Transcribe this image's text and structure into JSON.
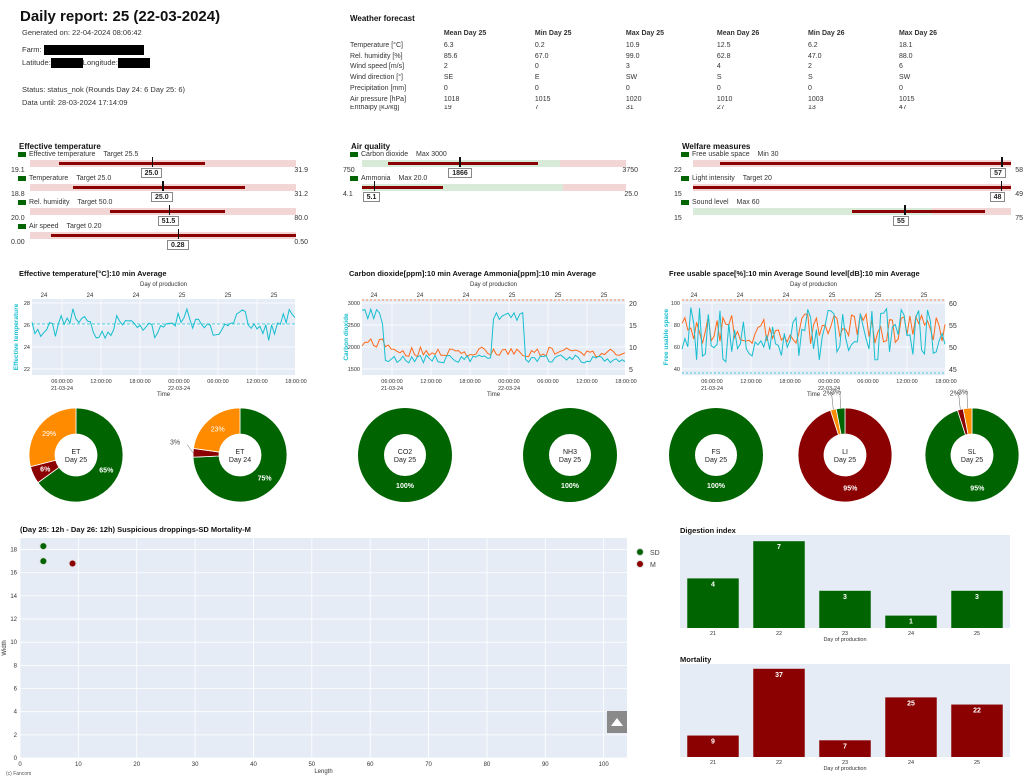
{
  "header": {
    "title": "Daily report: 25 (22-03-2024)",
    "generated": "Generated on: 22-04-2024 08:06:42",
    "farm_label": "Farm:",
    "latitude_label": "Latitude:",
    "longitude_label": "Longitude:",
    "status": "Status: status_nok (Rounds Day 24: 6 Day 25: 6)",
    "data_until": "Data until: 28-03-2024 17:14:09"
  },
  "weather": {
    "title": "Weather forecast",
    "columns": [
      "",
      "Mean Day 25",
      "Min Day 25",
      "Max Day 25",
      "Mean Day 26",
      "Min Day 26",
      "Max Day 26"
    ],
    "rows": [
      [
        "Temperature [°C]",
        "6.3",
        "0.2",
        "10.9",
        "12.5",
        "6.2",
        "18.1"
      ],
      [
        "Rel. humidity [%]",
        "85.6",
        "67.0",
        "99.0",
        "62.8",
        "47.0",
        "88.0"
      ],
      [
        "Wind speed [m/s]",
        "2",
        "0",
        "3",
        "4",
        "2",
        "6"
      ],
      [
        "Wind direction [°]",
        "SE",
        "E",
        "SW",
        "S",
        "S",
        "SW"
      ],
      [
        "Precipitation [mm]",
        "0",
        "0",
        "0",
        "0",
        "0",
        "0"
      ],
      [
        "Air pressure [hPa]",
        "1018",
        "1015",
        "1020",
        "1010",
        "1003",
        "1015"
      ],
      [
        "Enthalpy [kJ/kg]",
        "19",
        "7",
        "31",
        "27",
        "13",
        "47"
      ]
    ]
  },
  "gauge_groups": [
    {
      "title": "Effective temperature",
      "gauges": [
        {
          "name": "Effective temperature",
          "target": "Target 25.5",
          "min": "19.1",
          "max": "31.9",
          "lo": 19.1,
          "hi": 31.9,
          "bar_from": 20.5,
          "bar_to": 27.5,
          "green_from": null,
          "green_to": null,
          "value": 25.0,
          "label": "25.0"
        },
        {
          "name": "Temperature",
          "target": "Target 25.0",
          "min": "18.8",
          "max": "31.2",
          "lo": 18.8,
          "hi": 31.2,
          "bar_from": 20.8,
          "bar_to": 28.8,
          "green_from": null,
          "green_to": null,
          "value": 25.0,
          "label": "25.0"
        },
        {
          "name": "Rel. humidity",
          "target": "Target 50.0",
          "min": "20.0",
          "max": "80.0",
          "lo": 20.0,
          "hi": 80.0,
          "bar_from": 38,
          "bar_to": 64,
          "green_from": null,
          "green_to": null,
          "value": 51.5,
          "label": "51.5"
        },
        {
          "name": "Air speed",
          "target": "Target 0.20",
          "min": "0.00",
          "max": "0.50",
          "lo": 0,
          "hi": 0.5,
          "bar_from": 0.04,
          "bar_to": 0.5,
          "green_from": null,
          "green_to": null,
          "value": 0.28,
          "label": "0.28"
        }
      ]
    },
    {
      "title": "Air quality",
      "gauges": [
        {
          "name": "Carbon dioxide",
          "target": "Max 3000",
          "min": "750",
          "max": "3750",
          "lo": 750,
          "hi": 3750,
          "bar_from": 1050,
          "bar_to": 2750,
          "green_from": 750,
          "green_to": 3000,
          "value": 1866,
          "label": "1866"
        },
        {
          "name": "Ammonia",
          "target": "Max 20.0",
          "min": "4.1",
          "max": "25.0",
          "lo": 4.1,
          "hi": 25.0,
          "bar_from": 4.1,
          "bar_to": 10.5,
          "green_from": 4.1,
          "green_to": 20.0,
          "value": 5.1,
          "label": "5.1"
        }
      ]
    },
    {
      "title": "Welfare measures",
      "gauges": [
        {
          "name": "Free usable space",
          "target": "Min 30",
          "min": "22",
          "max": "58",
          "lo": 22,
          "hi": 58,
          "bar_from": 25,
          "bar_to": 58,
          "green_from": null,
          "green_to": null,
          "value": 57,
          "label": "57"
        },
        {
          "name": "Light intensity",
          "target": "Target 20",
          "min": "15",
          "max": "49",
          "lo": 15,
          "hi": 49,
          "bar_from": 15,
          "bar_to": 49,
          "green_from": null,
          "green_to": null,
          "value": 48,
          "label": "48"
        },
        {
          "name": "Sound level",
          "target": "Max 60",
          "min": "15",
          "max": "75",
          "lo": 15,
          "hi": 75,
          "bar_from": 45,
          "bar_to": 70,
          "green_from": 15,
          "green_to": 60,
          "value": 55,
          "label": "55"
        }
      ]
    }
  ],
  "line_charts": [
    {
      "title": "Effective temperature[°C]:10 min Average",
      "top_axis": "Day of production",
      "top_ticks": [
        "24",
        "24",
        "24",
        "25",
        "25",
        "25"
      ],
      "xlabel": "Time",
      "x_ticks": [
        "06:00:00\n21-03-24",
        "12:00:00",
        "18:00:00",
        "00:00:00\n22-03-24",
        "06:00:00",
        "12:00:00",
        "18:00:00"
      ],
      "ylabel": "Effective temperature",
      "y_ticks": [
        "22",
        "24",
        "26",
        "28"
      ],
      "y2_ticks": [],
      "target_line": 25.5
    },
    {
      "title": "Carbon dioxide[ppm]:10 min Average Ammonia[ppm]:10 min Average",
      "top_axis": "Day of production",
      "top_ticks": [
        "24",
        "24",
        "24",
        "25",
        "25",
        "25"
      ],
      "xlabel": "Time",
      "x_ticks": [
        "06:00:00\n21-03-24",
        "12:00:00",
        "18:00:00",
        "00:00:00\n22-03-24",
        "06:00:00",
        "12:00:00",
        "18:00:00"
      ],
      "ylabel": "Carbon dioxide",
      "y_ticks": [
        "1500",
        "2000",
        "2500",
        "3000"
      ],
      "y2_ticks": [
        "5",
        "10",
        "15",
        "20"
      ]
    },
    {
      "title": "Free usable space[%]:10 min Average Sound level[dB]:10 min Average",
      "top_axis": "Day of production",
      "top_ticks": [
        "24",
        "24",
        "24",
        "25",
        "25",
        "25"
      ],
      "xlabel": "Time",
      "x_ticks": [
        "06:00:00\n21-03-24",
        "12:00:00",
        "18:00:00",
        "00:00:00\n22-03-24",
        "06:00:00",
        "12:00:00",
        "18:00:00"
      ],
      "ylabel": "Free usable space",
      "y_ticks": [
        "40",
        "60",
        "80",
        "100"
      ],
      "y2_ticks": [
        "45",
        "50",
        "55",
        "60"
      ]
    }
  ],
  "donuts": [
    {
      "label": "ET",
      "day": "Day 25",
      "slices": [
        {
          "v": 65,
          "c": "#006400",
          "t": "65%"
        },
        {
          "v": 6,
          "c": "#8b0000",
          "t": "6%"
        },
        {
          "v": 29,
          "c": "#ff8c00",
          "t": "29%"
        }
      ]
    },
    {
      "label": "ET",
      "day": "Day 24",
      "slices": [
        {
          "v": 75,
          "c": "#006400",
          "t": "75%"
        },
        {
          "v": 3,
          "c": "#8b0000",
          "t": "3%"
        },
        {
          "v": 23,
          "c": "#ff8c00",
          "t": "23%"
        }
      ]
    },
    {
      "label": "CO2",
      "day": "Day 25",
      "slices": [
        {
          "v": 100,
          "c": "#006400",
          "t": "100%"
        }
      ]
    },
    {
      "label": "NH3",
      "day": "Day 25",
      "slices": [
        {
          "v": 100,
          "c": "#006400",
          "t": "100%"
        }
      ]
    },
    {
      "label": "FS",
      "day": "Day 25",
      "slices": [
        {
          "v": 100,
          "c": "#006400",
          "t": "100%"
        }
      ]
    },
    {
      "label": "LI",
      "day": "Day 25",
      "slices": [
        {
          "v": 95,
          "c": "#8b0000",
          "t": "95%"
        },
        {
          "v": 2,
          "c": "#ff8c00",
          "t": "2%"
        },
        {
          "v": 3,
          "c": "#006400",
          "t": "3%"
        }
      ]
    },
    {
      "label": "SL",
      "day": "Day 25",
      "slices": [
        {
          "v": 95,
          "c": "#006400",
          "t": "95%"
        },
        {
          "v": 2,
          "c": "#8b0000",
          "t": "2%"
        },
        {
          "v": 3,
          "c": "#ff8c00",
          "t": "3%"
        }
      ]
    }
  ],
  "chart_data": [
    {
      "type": "scatter",
      "title": "(Day 25: 12h - Day 26: 12h)  Suspicious droppings-SD  Mortality-M",
      "xlabel": "Length",
      "ylabel": "Width",
      "xlim": [
        0,
        104
      ],
      "ylim": [
        0,
        19
      ],
      "x_ticks": [
        0,
        10,
        20,
        30,
        40,
        50,
        60,
        70,
        80,
        90,
        100
      ],
      "y_ticks": [
        0,
        2,
        4,
        6,
        8,
        10,
        12,
        14,
        16,
        18
      ],
      "legend_position": "top-right",
      "series": [
        {
          "name": "SD",
          "color": "#006400",
          "x": [
            4,
            4
          ],
          "y": [
            18.3,
            17
          ]
        },
        {
          "name": "M",
          "color": "#8b0000",
          "x": [
            9
          ],
          "y": [
            16.8
          ]
        }
      ]
    },
    {
      "type": "bar",
      "title": "Digestion index",
      "xlabel": "Day of production",
      "categories": [
        "21",
        "22",
        "23",
        "24",
        "25"
      ],
      "values": [
        4,
        7,
        3,
        1,
        3
      ],
      "ylim": [
        0,
        7.5
      ],
      "color": "#006400"
    },
    {
      "type": "bar",
      "title": "Mortality",
      "xlabel": "Day of production",
      "categories": [
        "21",
        "22",
        "23",
        "24",
        "25"
      ],
      "values": [
        9,
        37,
        7,
        25,
        22
      ],
      "ylim": [
        0,
        39
      ],
      "color": "#8b0000"
    }
  ],
  "copyright": "(c) Fancom"
}
